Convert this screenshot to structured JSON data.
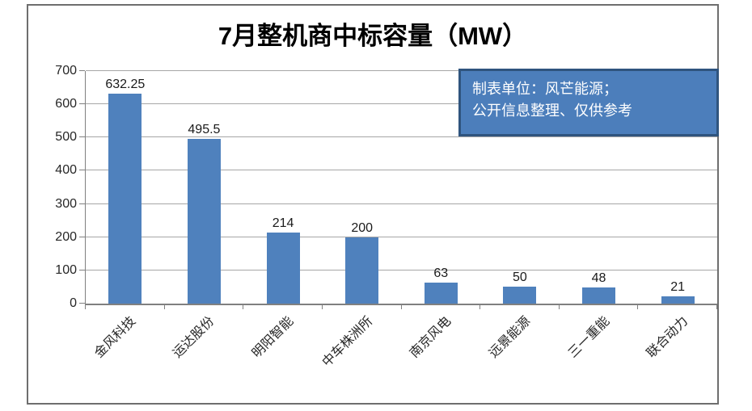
{
  "page": {
    "background": "#FFFFFF",
    "frame_border_color": "#6E6E6E"
  },
  "chart_data": {
    "type": "bar",
    "title": "7月整机商中标容量（MW）",
    "categories": [
      "金风科技",
      "运达股份",
      "明阳智能",
      "中车株洲所",
      "南京风电",
      "远景能源",
      "三一重能",
      "联合动力"
    ],
    "values": [
      632.25,
      495.5,
      214,
      200,
      63,
      50,
      48,
      21
    ],
    "value_labels": [
      "632.25",
      "495.5",
      "214",
      "200",
      "63",
      "50",
      "48",
      "21"
    ],
    "xlabel": "",
    "ylabel": "",
    "ylim": [
      0,
      700
    ],
    "y_ticks": [
      0,
      100,
      200,
      300,
      400,
      500,
      600,
      700
    ],
    "grid": "horizontal",
    "legend": "none",
    "bar_color": "#4F81BD",
    "axis_color": "#808080",
    "gridline_color": "#A6A6A6",
    "annotation": {
      "lines": [
        "制表单位：风芒能源；",
        "公开信息整理、仅供参考"
      ],
      "fill": "#4C7EBB",
      "border_color": "#2F547E",
      "text_color": "#FFFFFF"
    }
  }
}
